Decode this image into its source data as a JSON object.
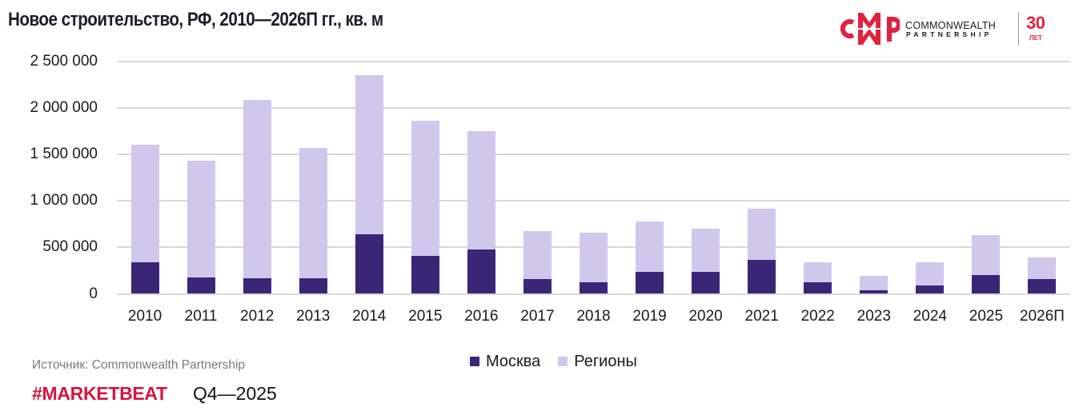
{
  "header": {
    "title": "Новое строительство, РФ, 2010—2026П гг., кв. м"
  },
  "logo": {
    "mark": "CWP",
    "brand_line1": "COMMONWEALTH",
    "brand_line2": "PARTNERSHIP",
    "years": "30",
    "years_sub": "ЛЕТ",
    "color": "#e0223f"
  },
  "legend": {
    "items": [
      {
        "label": "Москва",
        "color": "#3b2577"
      },
      {
        "label": "Регионы",
        "color": "#d0c8ec"
      }
    ]
  },
  "footer": {
    "source": "Источник: Commonwealth Partnership",
    "marketbeat": "#MARKETBEAT",
    "quarter": "Q4—2025",
    "marketbeat_color": "#d2163f"
  },
  "chart_data": {
    "type": "bar",
    "stacked": true,
    "title": "Новое строительство, РФ, 2010—2026П гг., кв. м",
    "xlabel": "",
    "ylabel": "кв. м",
    "ylim": [
      0,
      2500000
    ],
    "yticks": [
      0,
      500000,
      1000000,
      1500000,
      2000000,
      2500000
    ],
    "ytick_labels": [
      "0",
      "500 000",
      "1 000 000",
      "1 500 000",
      "2 000 000",
      "2 500 000"
    ],
    "grid": true,
    "legend_position": "bottom",
    "categories": [
      "2010",
      "2011",
      "2012",
      "2013",
      "2014",
      "2015",
      "2016",
      "2017",
      "2018",
      "2019",
      "2020",
      "2021",
      "2022",
      "2023",
      "2024",
      "2025",
      "2026П"
    ],
    "series": [
      {
        "name": "Москва",
        "color": "#3b2577",
        "values": [
          338000,
          174000,
          166000,
          166000,
          642000,
          409000,
          476000,
          161000,
          124000,
          239000,
          239000,
          368000,
          127000,
          40000,
          92000,
          204000,
          159000
        ]
      },
      {
        "name": "Регионы",
        "color": "#d0c8ec",
        "values": [
          1270000,
          1261000,
          1924000,
          1407000,
          1715000,
          1457000,
          1275000,
          517000,
          537000,
          543000,
          465000,
          552000,
          215000,
          156000,
          250000,
          431000,
          235000
        ]
      }
    ],
    "totals": [
      1608000,
      1435000,
      2090000,
      1573000,
      2357000,
      1866000,
      1751000,
      678000,
      661000,
      782000,
      704000,
      920000,
      342000,
      196000,
      342000,
      635000,
      394000
    ]
  }
}
